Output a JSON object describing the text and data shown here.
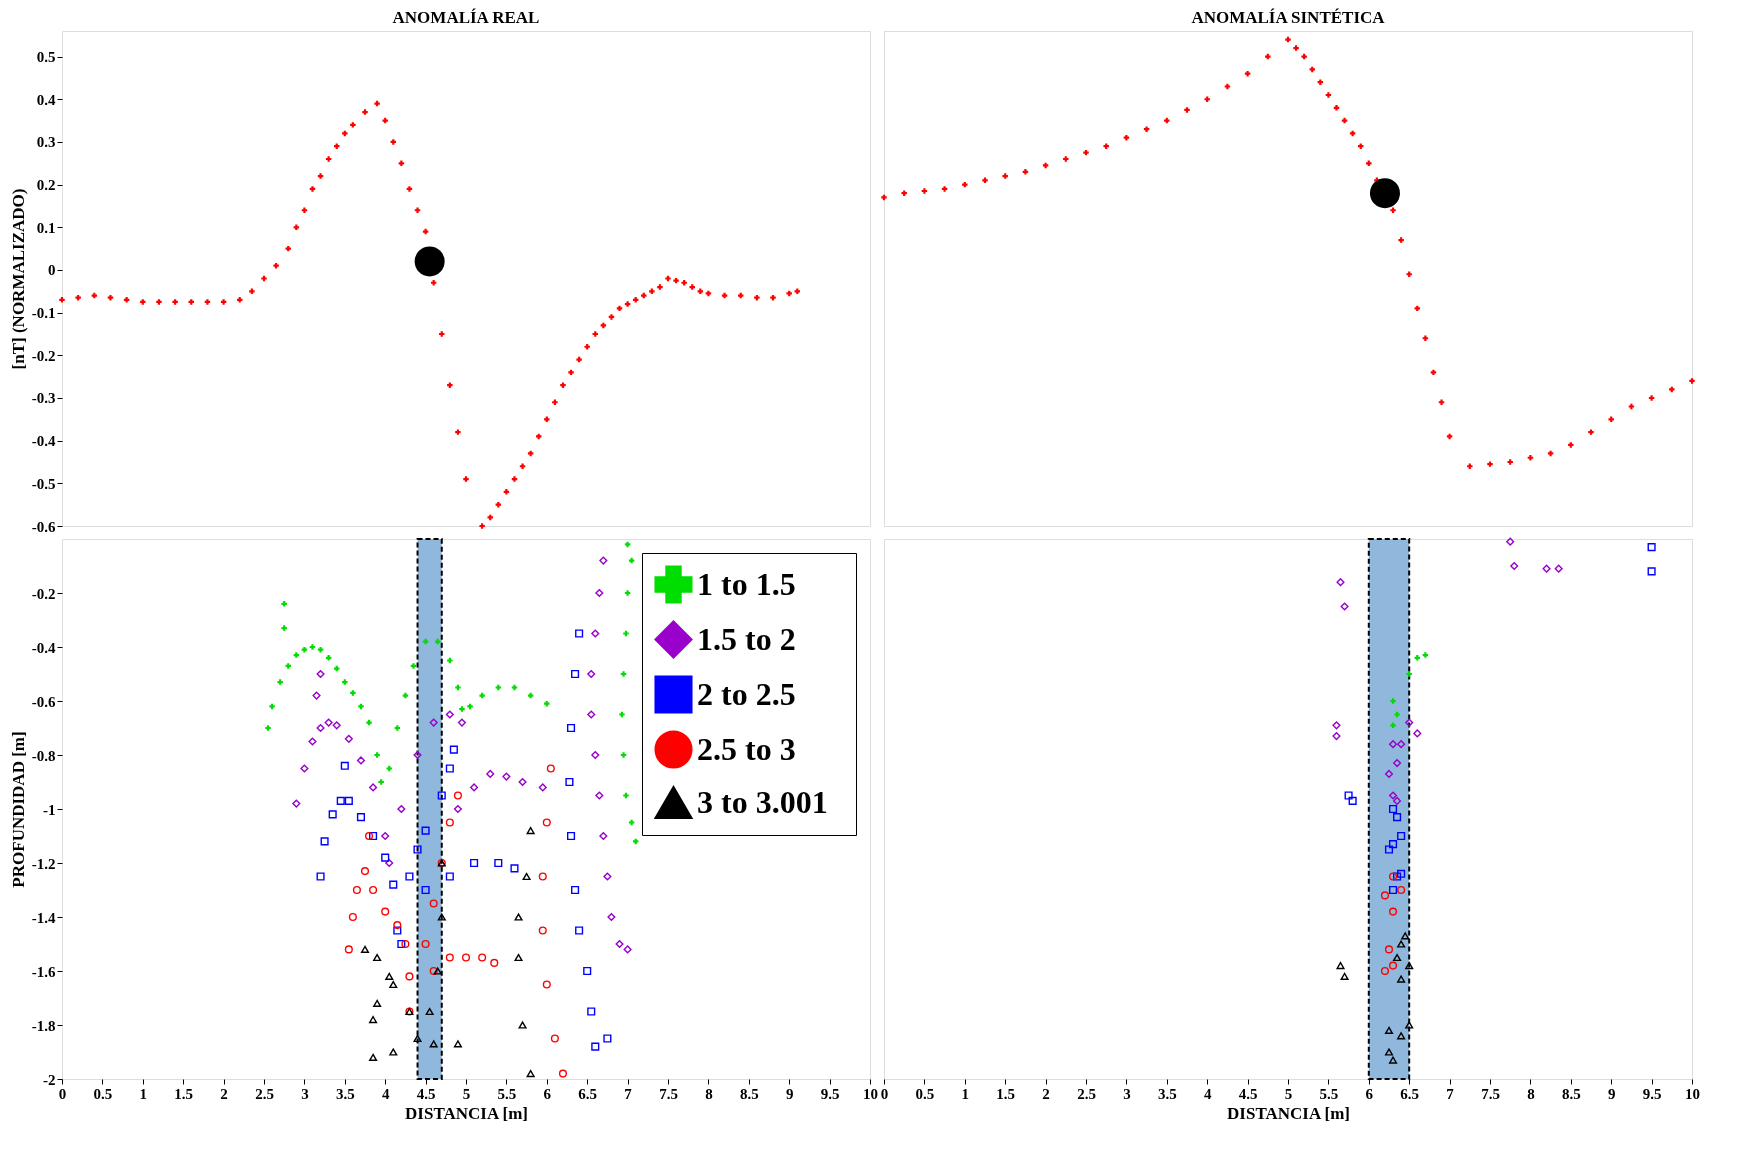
{
  "chart_data": [
    {
      "type": "scatter",
      "title": "ANOMALÍA REAL",
      "ylabel": "[nT] (NORMALIZADO)",
      "xlim": [
        0,
        10
      ],
      "ylim": [
        -0.6,
        0.56
      ],
      "yticks": [
        -0.6,
        -0.5,
        -0.4,
        -0.3,
        -0.2,
        -0.1,
        0,
        0.1,
        0.2,
        0.3,
        0.4,
        0.5
      ],
      "tick_labels": "y",
      "grid": false,
      "series": [
        {
          "color": "#ff0000",
          "marker": "cross",
          "x": [
            0,
            0.2,
            0.4,
            0.6,
            0.8,
            1.0,
            1.2,
            1.4,
            1.6,
            1.8,
            2.0,
            2.2,
            2.35,
            2.5,
            2.65,
            2.8,
            2.9,
            3.0,
            3.1,
            3.2,
            3.3,
            3.4,
            3.5,
            3.6,
            3.75,
            3.9,
            4.0,
            4.1,
            4.2,
            4.3,
            4.4,
            4.5,
            4.6,
            4.7,
            4.8,
            4.9,
            5.0,
            5.2,
            5.3,
            5.4,
            5.5,
            5.6,
            5.7,
            5.8,
            5.9,
            6.0,
            6.1,
            6.2,
            6.3,
            6.4,
            6.5,
            6.6,
            6.7,
            6.8,
            6.9,
            7.0,
            7.1,
            7.2,
            7.3,
            7.4,
            7.5,
            7.6,
            7.7,
            7.8,
            7.9,
            8.0,
            8.2,
            8.4,
            8.6,
            8.8,
            9.0,
            9.1
          ],
          "values": [
            -0.07,
            -0.065,
            -0.06,
            -0.065,
            -0.07,
            -0.075,
            -0.075,
            -0.075,
            -0.075,
            -0.075,
            -0.075,
            -0.07,
            -0.05,
            -0.02,
            0.01,
            0.05,
            0.1,
            0.14,
            0.19,
            0.22,
            0.26,
            0.29,
            0.32,
            0.34,
            0.37,
            0.39,
            0.35,
            0.3,
            0.25,
            0.19,
            0.14,
            0.09,
            -0.03,
            -0.15,
            -0.27,
            -0.38,
            -0.49,
            -0.6,
            -0.58,
            -0.55,
            -0.52,
            -0.49,
            -0.46,
            -0.43,
            -0.39,
            -0.35,
            -0.31,
            -0.27,
            -0.24,
            -0.21,
            -0.18,
            -0.15,
            -0.13,
            -0.11,
            -0.09,
            -0.08,
            -0.07,
            -0.06,
            -0.05,
            -0.04,
            -0.02,
            -0.025,
            -0.03,
            -0.04,
            -0.05,
            -0.055,
            -0.06,
            -0.06,
            -0.065,
            -0.065,
            -0.055,
            -0.05
          ]
        },
        {
          "type": "bubble",
          "color": "#000000",
          "x": [
            4.55
          ],
          "values": [
            0.02
          ],
          "sizes": [
            1
          ]
        }
      ]
    },
    {
      "type": "scatter",
      "title": "ANOMALÍA SINTÉTICA",
      "xlim": [
        0,
        10
      ],
      "ylim": [
        -0.6,
        0.56
      ],
      "tick_labels": false,
      "series": [
        {
          "color": "#ff0000",
          "marker": "cross",
          "x": [
            0,
            0.25,
            0.5,
            0.75,
            1.0,
            1.25,
            1.5,
            1.75,
            2.0,
            2.25,
            2.5,
            2.75,
            3.0,
            3.25,
            3.5,
            3.75,
            4.0,
            4.25,
            4.5,
            4.75,
            5.0,
            5.1,
            5.2,
            5.3,
            5.4,
            5.5,
            5.6,
            5.7,
            5.8,
            5.9,
            6.0,
            6.1,
            6.3,
            6.4,
            6.5,
            6.6,
            6.7,
            6.8,
            6.9,
            7.0,
            7.25,
            7.5,
            7.75,
            8.0,
            8.25,
            8.5,
            8.75,
            9.0,
            9.25,
            9.5,
            9.75,
            10.0
          ],
          "values": [
            0.17,
            0.18,
            0.185,
            0.19,
            0.2,
            0.21,
            0.22,
            0.23,
            0.245,
            0.26,
            0.275,
            0.29,
            0.31,
            0.33,
            0.35,
            0.375,
            0.4,
            0.43,
            0.46,
            0.5,
            0.54,
            0.52,
            0.5,
            0.47,
            0.44,
            0.41,
            0.38,
            0.35,
            0.32,
            0.29,
            0.25,
            0.21,
            0.14,
            0.07,
            -0.01,
            -0.09,
            -0.16,
            -0.24,
            -0.31,
            -0.39,
            -0.46,
            -0.455,
            -0.45,
            -0.44,
            -0.43,
            -0.41,
            -0.38,
            -0.35,
            -0.32,
            -0.3,
            -0.28,
            -0.26
          ]
        },
        {
          "type": "bubble",
          "color": "#000000",
          "x": [
            6.2
          ],
          "values": [
            0.18
          ],
          "sizes": [
            1
          ]
        }
      ]
    },
    {
      "type": "scatter",
      "xlabel": "DISTANCIA [m]",
      "ylabel": "PROFUNDIDAD [m]",
      "xlim": [
        0,
        10
      ],
      "ylim": [
        -2,
        0
      ],
      "xticks": [
        0,
        0.5,
        1,
        1.5,
        2,
        2.5,
        3,
        3.5,
        4,
        4.5,
        5,
        5.5,
        6,
        6.5,
        7,
        7.5,
        8,
        8.5,
        9,
        9.5,
        10
      ],
      "yticks": [
        -2,
        -1.8,
        -1.6,
        -1.4,
        -1.2,
        -1,
        -0.8,
        -0.6,
        -0.4,
        -0.2
      ],
      "grid": false,
      "legend": "top right",
      "bands": [
        {
          "axis": "x",
          "from": 4.4,
          "to": 4.7,
          "color": "#8fb8dc"
        }
      ],
      "series": [
        {
          "name": "1  to  1.5",
          "color": "#00dd00",
          "marker": "cross",
          "x": [
            2.55,
            2.6,
            2.7,
            2.8,
            2.9,
            3.0,
            3.1,
            3.2,
            3.3,
            3.4,
            3.5,
            3.6,
            3.7,
            3.8,
            3.9,
            3.95,
            2.75,
            2.75,
            4.05,
            4.15,
            4.25,
            4.35,
            4.5,
            4.65,
            4.8,
            4.9,
            4.95,
            5.05,
            5.2,
            5.4,
            5.6,
            5.8,
            6.0,
            7.05,
            7.0,
            6.98,
            6.95,
            6.93,
            6.95,
            6.98,
            7.05,
            7.1,
            7.0
          ],
          "values": [
            -0.7,
            -0.62,
            -0.53,
            -0.47,
            -0.43,
            -0.41,
            -0.4,
            -0.41,
            -0.44,
            -0.48,
            -0.53,
            -0.57,
            -0.62,
            -0.68,
            -0.8,
            -0.9,
            -0.24,
            -0.33,
            -0.85,
            -0.7,
            -0.58,
            -0.47,
            -0.38,
            -0.38,
            -0.45,
            -0.55,
            -0.63,
            -0.62,
            -0.58,
            -0.55,
            -0.55,
            -0.58,
            -0.61,
            -0.08,
            -0.2,
            -0.35,
            -0.5,
            -0.65,
            -0.8,
            -0.95,
            -1.05,
            -1.12,
            -0.02
          ]
        },
        {
          "name": "1.5  to  2",
          "color": "#9900cc",
          "marker": "diamond",
          "x": [
            2.9,
            3.0,
            3.1,
            3.2,
            3.3,
            3.4,
            3.55,
            3.7,
            3.85,
            4.0,
            4.05,
            3.2,
            3.15,
            4.2,
            4.4,
            4.6,
            4.8,
            4.95,
            4.9,
            5.1,
            5.3,
            5.5,
            5.7,
            5.95,
            6.7,
            6.65,
            6.6,
            6.55,
            6.55,
            6.6,
            6.65,
            6.7,
            6.75,
            6.8,
            6.9,
            7.0
          ],
          "values": [
            -0.98,
            -0.85,
            -0.75,
            -0.7,
            -0.68,
            -0.69,
            -0.74,
            -0.82,
            -0.92,
            -1.1,
            -1.2,
            -0.5,
            -0.58,
            -1.0,
            -0.8,
            -0.68,
            -0.65,
            -0.68,
            -1.0,
            -0.92,
            -0.87,
            -0.88,
            -0.9,
            -0.92,
            -0.08,
            -0.2,
            -0.35,
            -0.5,
            -0.65,
            -0.8,
            -0.95,
            -1.1,
            -1.25,
            -1.4,
            -1.5,
            -1.52
          ]
        },
        {
          "name": "2  to  2.5",
          "color": "#0000ff",
          "marker": "square",
          "x": [
            3.2,
            3.25,
            3.35,
            3.45,
            3.55,
            3.7,
            3.85,
            4.0,
            4.1,
            4.15,
            4.2,
            3.5,
            4.3,
            4.4,
            4.5,
            4.7,
            4.8,
            4.85,
            4.5,
            4.8,
            5.1,
            5.4,
            5.6,
            6.4,
            6.35,
            6.3,
            6.28,
            6.3,
            6.35,
            6.4,
            6.5,
            6.55,
            6.6,
            6.75
          ],
          "values": [
            -1.25,
            -1.12,
            -1.02,
            -0.97,
            -0.97,
            -1.03,
            -1.1,
            -1.18,
            -1.28,
            -1.45,
            -1.5,
            -0.84,
            -1.25,
            -1.15,
            -1.08,
            -0.95,
            -0.85,
            -0.78,
            -1.3,
            -1.25,
            -1.2,
            -1.2,
            -1.22,
            -0.35,
            -0.5,
            -0.7,
            -0.9,
            -1.1,
            -1.3,
            -1.45,
            -1.6,
            -1.75,
            -1.88,
            -1.85
          ]
        },
        {
          "name": "2.5  to  3",
          "color": "#ff0000",
          "marker": "circle",
          "x": [
            3.55,
            3.6,
            3.65,
            3.75,
            3.85,
            4.0,
            4.15,
            4.25,
            4.3,
            4.3,
            3.8,
            4.5,
            4.6,
            4.7,
            4.8,
            4.9,
            4.6,
            4.8,
            5.0,
            5.2,
            5.35,
            6.05,
            6.0,
            5.95,
            5.95,
            6.0,
            6.1,
            6.2
          ],
          "values": [
            -1.52,
            -1.4,
            -1.3,
            -1.23,
            -1.3,
            -1.38,
            -1.43,
            -1.5,
            -1.62,
            -1.75,
            -1.1,
            -1.5,
            -1.35,
            -1.2,
            -1.05,
            -0.95,
            -1.6,
            -1.55,
            -1.55,
            -1.55,
            -1.57,
            -0.85,
            -1.05,
            -1.25,
            -1.45,
            -1.65,
            -1.85,
            -1.98
          ]
        },
        {
          "name": "3  to  3.001",
          "color": "#000000",
          "marker": "triangle",
          "x": [
            3.75,
            3.9,
            4.1,
            4.3,
            3.85,
            3.9,
            4.05,
            4.4,
            4.6,
            4.9,
            3.85,
            4.1,
            4.7,
            4.7,
            4.65,
            4.55,
            5.8,
            5.75,
            5.65,
            5.65,
            5.7,
            5.8
          ],
          "values": [
            -1.52,
            -1.55,
            -1.65,
            -1.75,
            -1.78,
            -1.72,
            -1.62,
            -1.85,
            -1.87,
            -1.87,
            -1.92,
            -1.9,
            -1.4,
            -1.2,
            -1.6,
            -1.75,
            -1.08,
            -1.25,
            -1.4,
            -1.55,
            -1.8,
            -1.98
          ]
        }
      ]
    },
    {
      "type": "scatter",
      "xlabel": "DISTANCIA [m]",
      "xlim": [
        0,
        10
      ],
      "ylim": [
        -2,
        0
      ],
      "xticks": [
        0,
        0.5,
        1,
        1.5,
        2,
        2.5,
        3,
        3.5,
        4,
        4.5,
        5,
        5.5,
        6,
        6.5,
        7,
        7.5,
        8,
        8.5,
        9,
        9.5,
        10
      ],
      "tick_labels": "x",
      "grid": false,
      "bands": [
        {
          "axis": "x",
          "from": 6.0,
          "to": 6.5,
          "color": "#8fb8dc"
        }
      ],
      "series": [
        {
          "color": "#00dd00",
          "marker": "cross",
          "x": [
            6.7,
            6.6,
            6.3,
            6.35,
            6.3,
            6.5
          ],
          "values": [
            -0.43,
            -0.44,
            -0.6,
            -0.65,
            -0.69,
            -0.5
          ]
        },
        {
          "color": "#9900cc",
          "marker": "diamond",
          "x": [
            5.65,
            5.7,
            5.6,
            5.6,
            6.3,
            6.4,
            6.5,
            6.6,
            6.35,
            6.25,
            6.3,
            6.35,
            7.75,
            7.8,
            8.2,
            8.35
          ],
          "values": [
            -0.16,
            -0.25,
            -0.69,
            -0.73,
            -0.76,
            -0.76,
            -0.68,
            -0.72,
            -0.83,
            -0.87,
            -0.95,
            -0.97,
            -0.01,
            -0.1,
            -0.11,
            -0.11
          ]
        },
        {
          "color": "#0000ff",
          "marker": "square",
          "x": [
            5.75,
            5.8,
            6.3,
            6.35,
            6.3,
            6.4,
            6.25,
            6.35,
            6.4,
            6.3,
            9.5,
            9.5
          ],
          "values": [
            -0.95,
            -0.97,
            -1.0,
            -1.03,
            -1.13,
            -1.1,
            -1.15,
            -1.25,
            -1.24,
            -1.3,
            -0.03,
            -0.12
          ]
        },
        {
          "color": "#ff0000",
          "marker": "circle",
          "x": [
            6.2,
            6.3,
            6.4,
            6.3,
            6.25,
            6.3,
            6.2
          ],
          "values": [
            -1.32,
            -1.25,
            -1.3,
            -1.38,
            -1.52,
            -1.58,
            -1.6
          ]
        },
        {
          "color": "#000000",
          "marker": "triangle",
          "x": [
            5.65,
            5.7,
            6.4,
            6.45,
            6.35,
            6.4,
            6.5,
            6.25,
            6.4,
            6.5,
            6.25,
            6.3
          ],
          "values": [
            -1.58,
            -1.62,
            -1.5,
            -1.47,
            -1.55,
            -1.63,
            -1.58,
            -1.82,
            -1.84,
            -1.8,
            -1.9,
            -1.93
          ]
        }
      ]
    }
  ]
}
